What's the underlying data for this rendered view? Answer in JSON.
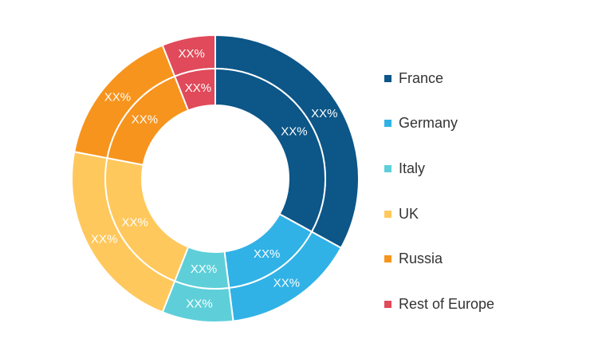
{
  "chart_data": {
    "type": "pie",
    "title": "",
    "series": [
      {
        "values": [
          33,
          15,
          8,
          22,
          16,
          6
        ],
        "labels": [
          "XX%",
          "XX%",
          "XX%",
          "XX%",
          "XX%",
          "XX%"
        ]
      },
      {
        "values": [
          33,
          15,
          8,
          22,
          16,
          6
        ],
        "labels": [
          "XX%",
          "XX%",
          "XX%",
          "XX%",
          "XX%",
          "XX%"
        ]
      }
    ],
    "categories": [
      "France",
      "Germany",
      "Italy",
      "UK",
      "Russia",
      "Rest of Europe"
    ],
    "colors": [
      "#0c5688",
      "#30b2e6",
      "#5ecfd9",
      "#ffc85c",
      "#f7941d",
      "#e04a5a"
    ],
    "legend_position": "right"
  }
}
